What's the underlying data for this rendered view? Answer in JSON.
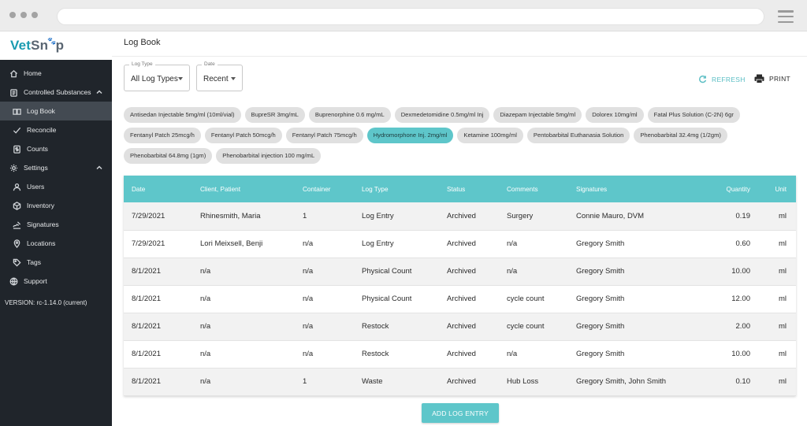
{
  "app": {
    "logo_vet": "Vet",
    "logo_sn": "Sn",
    "logo_paw": "🐾",
    "logo_p": "p",
    "brand_color": "#1a9bb0"
  },
  "sidebar": {
    "items": [
      {
        "label": "Home",
        "icon": "home-icon"
      },
      {
        "label": "Controlled Substances",
        "icon": "clipboard-icon"
      },
      {
        "label": "Log Book",
        "icon": "book-icon"
      },
      {
        "label": "Reconcile",
        "icon": "check-icon"
      },
      {
        "label": "Counts",
        "icon": "dollar-doc-icon"
      },
      {
        "label": "Settings",
        "icon": "gear-icon"
      },
      {
        "label": "Users",
        "icon": "user-icon"
      },
      {
        "label": "Inventory",
        "icon": "cube-icon"
      },
      {
        "label": "Signatures",
        "icon": "signature-icon"
      },
      {
        "label": "Locations",
        "icon": "pin-icon"
      },
      {
        "label": "Tags",
        "icon": "tag-icon"
      },
      {
        "label": "Support",
        "icon": "globe-icon"
      }
    ],
    "version": "VERSION: rc-1.14.0 (current)"
  },
  "page": {
    "title": "Log Book"
  },
  "filters": {
    "log_type_label": "Log Type",
    "log_type_value": "All Log Types",
    "date_label": "Date",
    "date_value": "Recent"
  },
  "actions": {
    "refresh": "REFRESH",
    "print": "PRINT",
    "add_log_entry": "ADD LOG ENTRY"
  },
  "chips": [
    [
      "Antisedan Injectable 5mg/ml (10ml/vial)",
      "BupreSR 3mg/mL",
      "Buprenorphine 0.6 mg/mL",
      "Dexmedetomidine 0.5mg/ml Inj",
      "Diazepam Injectable 5mg/ml",
      "Dolorex 10mg/ml",
      "Fatal Plus Solution (C-2N) 6gr"
    ],
    [
      "Fentanyl Patch 25mcg/h",
      "Fentanyl Patch 50mcg/h",
      "Fentanyl Patch 75mcg/h",
      "Hydromorphone Inj. 2mg/ml",
      "Ketamine 100mg/ml",
      "Pentobarbital Euthanasia Solution",
      "Phenobarbital 32.4mg (1/2gm)"
    ],
    [
      "Phenobarbital 64.8mg (1gm)",
      "Phenobarbital injection 100 mg/mL"
    ]
  ],
  "selected_chip": "Hydromorphone Inj. 2mg/ml",
  "table": {
    "headers": [
      "Date",
      "Client, Patient",
      "Container",
      "Log Type",
      "Status",
      "Comments",
      "Signatures",
      "Quantity",
      "Unit"
    ],
    "rows": [
      [
        "7/29/2021",
        "Rhinesmith, Maria",
        "1",
        "Log Entry",
        "Archived",
        "Surgery",
        "Connie Mauro, DVM",
        "0.19",
        "ml"
      ],
      [
        "7/29/2021",
        "Lori Meixsell, Benji",
        "n/a",
        "Log Entry",
        "Archived",
        "n/a",
        "Gregory Smith",
        "0.60",
        "ml"
      ],
      [
        "8/1/2021",
        "n/a",
        "n/a",
        "Physical Count",
        "Archived",
        "n/a",
        "Gregory Smith",
        "10.00",
        "ml"
      ],
      [
        "8/1/2021",
        "n/a",
        "n/a",
        "Physical Count",
        "Archived",
        "cycle count",
        "Gregory Smith",
        "12.00",
        "ml"
      ],
      [
        "8/1/2021",
        "n/a",
        "n/a",
        "Restock",
        "Archived",
        "cycle count",
        "Gregory Smith",
        "2.00",
        "ml"
      ],
      [
        "8/1/2021",
        "n/a",
        "n/a",
        "Restock",
        "Archived",
        "n/a",
        "Gregory Smith",
        "10.00",
        "ml"
      ],
      [
        "8/1/2021",
        "n/a",
        "1",
        "Waste",
        "Archived",
        "Hub Loss",
        "Gregory Smith, John Smith",
        "0.10",
        "ml"
      ]
    ]
  },
  "colors": {
    "accent": "#5ec6ca",
    "sidebar_bg": "#20252b",
    "sidebar_active": "#434a52",
    "chip_bg": "#e0e0e0"
  }
}
